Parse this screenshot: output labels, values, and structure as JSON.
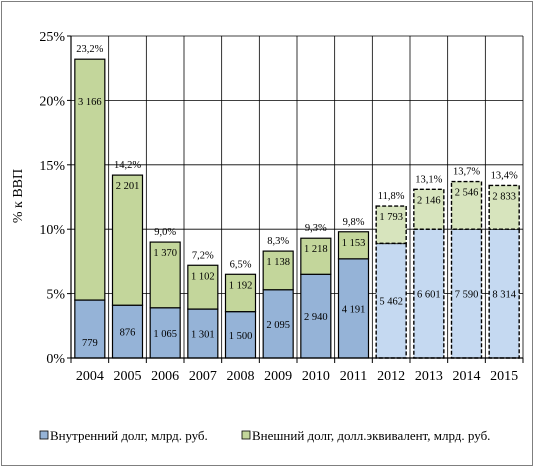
{
  "chart_data": {
    "type": "bar",
    "stacked": true,
    "categories": [
      "2004",
      "2005",
      "2006",
      "2007",
      "2008",
      "2009",
      "2010",
      "2011",
      "2012",
      "2013",
      "2014",
      "2015"
    ],
    "ylabel": "% к ВВП",
    "ylim": [
      0,
      25
    ],
    "yticks": [
      0,
      5,
      10,
      15,
      20,
      25
    ],
    "ytick_labels": [
      "0%",
      "5%",
      "10%",
      "15%",
      "20%",
      "25%"
    ],
    "grid": true,
    "legend_position": "bottom",
    "forecast_from": "2012",
    "series": [
      {
        "name": "Внутренний долг, млрд. руб.",
        "color": "#95b3d7",
        "forecast_color": "#c5d9f1",
        "gdp_share": [
          4.5,
          4.1,
          3.9,
          3.8,
          3.6,
          5.3,
          6.5,
          7.7,
          8.9,
          10.0,
          10.0,
          10.0
        ],
        "labels": [
          "779",
          "876",
          "1 065",
          "1 301",
          "1 500",
          "2 095",
          "2 940",
          "4 191",
          "5 462",
          "6 601",
          "7 590",
          "8 314"
        ]
      },
      {
        "name": "Внешний долг, долл.эквивалент, млрд. руб.",
        "color": "#c3d69b",
        "forecast_color": "#d7e4bd",
        "gdp_share": [
          18.7,
          10.1,
          5.1,
          3.4,
          2.9,
          3.0,
          2.8,
          2.1,
          2.9,
          3.1,
          3.7,
          3.4
        ],
        "labels": [
          "3 166",
          "2 201",
          "1 370",
          "1 102",
          "1 192",
          "1 138",
          "1 218",
          "1 153",
          "1 793",
          "2 146",
          "2 546",
          "2 833"
        ]
      }
    ],
    "totals": [
      "23,2%",
      "14,2%",
      "9,0%",
      "7,2%",
      "6,5%",
      "8,3%",
      "9,3%",
      "9,8%",
      "11,8%",
      "13,1%",
      "13,7%",
      "13,4%"
    ]
  }
}
